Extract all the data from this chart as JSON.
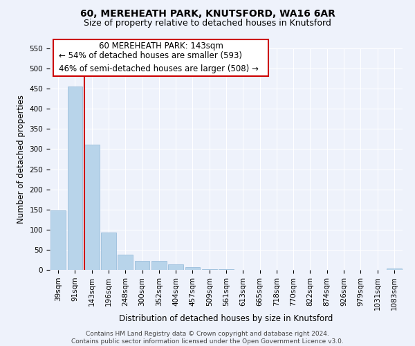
{
  "title": "60, MEREHEATH PARK, KNUTSFORD, WA16 6AR",
  "subtitle": "Size of property relative to detached houses in Knutsford",
  "xlabel": "Distribution of detached houses by size in Knutsford",
  "ylabel": "Number of detached properties",
  "categories": [
    "39sqm",
    "91sqm",
    "143sqm",
    "196sqm",
    "248sqm",
    "300sqm",
    "352sqm",
    "404sqm",
    "457sqm",
    "509sqm",
    "561sqm",
    "613sqm",
    "665sqm",
    "718sqm",
    "770sqm",
    "822sqm",
    "874sqm",
    "926sqm",
    "979sqm",
    "1031sqm",
    "1083sqm"
  ],
  "values": [
    148,
    455,
    311,
    93,
    38,
    22,
    22,
    13,
    7,
    2,
    1,
    0,
    0,
    0,
    0,
    0,
    0,
    0,
    0,
    0,
    3
  ],
  "bar_color": "#b8d4ea",
  "bar_edge_color": "#90b8d8",
  "highlight_index": 2,
  "highlight_line_color": "#cc0000",
  "annotation_box_color": "#ffffff",
  "annotation_border_color": "#cc0000",
  "annotation_text_line1": "60 MEREHEATH PARK: 143sqm",
  "annotation_text_line2": "← 54% of detached houses are smaller (593)",
  "annotation_text_line3": "46% of semi-detached houses are larger (508) →",
  "ylim": [
    0,
    550
  ],
  "yticks": [
    0,
    50,
    100,
    150,
    200,
    250,
    300,
    350,
    400,
    450,
    500,
    550
  ],
  "footer_line1": "Contains HM Land Registry data © Crown copyright and database right 2024.",
  "footer_line2": "Contains public sector information licensed under the Open Government Licence v3.0.",
  "background_color": "#eef2fb",
  "grid_color": "#ffffff",
  "title_fontsize": 10,
  "subtitle_fontsize": 9,
  "axis_label_fontsize": 8.5,
  "tick_fontsize": 7.5,
  "annotation_fontsize": 8.5,
  "footer_fontsize": 6.5
}
